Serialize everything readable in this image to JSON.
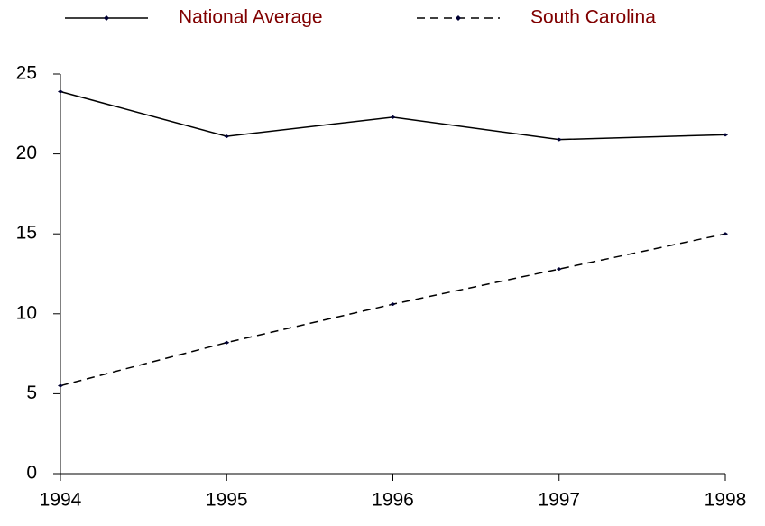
{
  "chart_data": {
    "type": "line",
    "x": [
      1994,
      1995,
      1996,
      1997,
      1998
    ],
    "xlim": [
      1994,
      1998
    ],
    "xticks": [
      1994,
      1995,
      1996,
      1997,
      1998
    ],
    "ylim": [
      0,
      25
    ],
    "yticks": [
      0,
      5,
      10,
      15,
      20,
      25
    ],
    "legend": "top",
    "series": [
      {
        "name": "National Average",
        "color": "#000000",
        "linestyle": "solid",
        "values": [
          23.9,
          21.1,
          22.3,
          20.9,
          21.2
        ]
      },
      {
        "name": "South Carolina",
        "color": "#000000",
        "linestyle": "dashed",
        "values": [
          5.5,
          8.2,
          10.6,
          12.8,
          15.0
        ]
      }
    ]
  }
}
